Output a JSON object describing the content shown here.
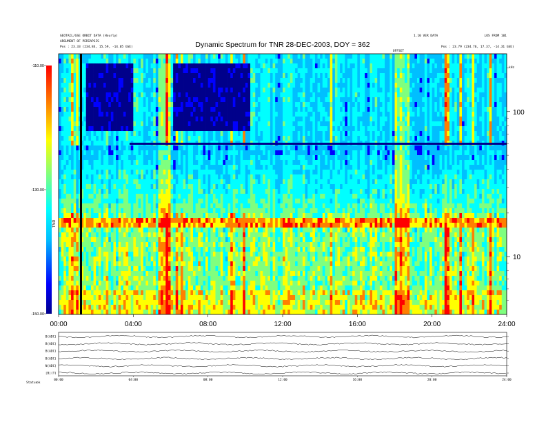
{
  "header": {
    "title": "Dynamic Spectrum for TNR 28-DEC-2003, DOY = 362",
    "left_meta_1": "GEOTAIL/GSE ORBIT DATA (Hourly)",
    "left_meta_2": "ARGUMENT OF PERIAPSIS",
    "left_pos": "Pos : 23.33 (234.84, 15.59, -14.05 GSE)",
    "right_meta_1": "1.10 VER DATA",
    "right_meta_2": "Pos : 23.79 (234.76, 17.37, -14.31 GSE)",
    "right_meta_3": "LOS FROM 101",
    "center_tag": "OFFSET",
    "freq_unit": "kHz"
  },
  "chart_data": [
    {
      "type": "heatmap",
      "title": "Dynamic Spectrum for TNR 28-DEC-2003, DOY = 362",
      "xlabel": "",
      "ylabel": "",
      "x_ticks": [
        "00:00",
        "04:00",
        "08:00",
        "12:00",
        "16:00",
        "20:00",
        "24:00"
      ],
      "xlim_hours": [
        0,
        24
      ],
      "y_scale": "log",
      "y_ticks": [
        10,
        100
      ],
      "ylim_khz": [
        4,
        250
      ],
      "colorbar": {
        "label": "TNR",
        "ticks": [
          "-110.00",
          "-130.00",
          "-150.00"
        ],
        "range": [
          -150,
          -110
        ],
        "colors": [
          "#00008b",
          "#0000ff",
          "#00bfff",
          "#00ffff",
          "#7fff7f",
          "#ffff00",
          "#ff7f00",
          "#ff0000"
        ]
      },
      "notable_features": {
        "dark_quiet_patches_hours": [
          [
            1.5,
            4.0
          ],
          [
            6.2,
            10.2
          ]
        ],
        "red_emission_band_khz": 17,
        "black_data_gap_hour": 1.2
      }
    },
    {
      "type": "line",
      "title": "",
      "x_ticks": [
        "00:00",
        "04:00",
        "08:00",
        "12:00",
        "16:00",
        "20:00",
        "24:00"
      ],
      "series": [
        {
          "name": "B(ADC)"
        },
        {
          "name": "B(ADC)"
        },
        {
          "name": "B(ADC)"
        },
        {
          "name": "B(ADC)"
        },
        {
          "name": "N(ADC)"
        },
        {
          "name": "|B|(T)"
        }
      ]
    }
  ],
  "footer": {
    "label": "Status",
    "value": "ok"
  }
}
